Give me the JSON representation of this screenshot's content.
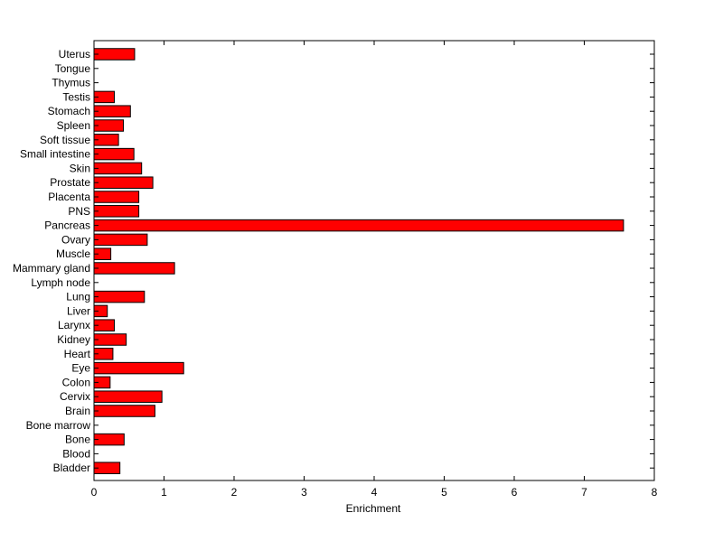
{
  "chart_data": {
    "type": "bar",
    "orientation": "horizontal",
    "xlabel": "Enrichment",
    "ylabel": "",
    "title": "",
    "xlim": [
      0,
      8
    ],
    "xticks": [
      0,
      1,
      2,
      3,
      4,
      5,
      6,
      7,
      8
    ],
    "grid": false,
    "legend": "none",
    "bar_color": "#ff0000",
    "categories": [
      "Bladder",
      "Blood",
      "Bone",
      "Bone marrow",
      "Brain",
      "Cervix",
      "Colon",
      "Eye",
      "Heart",
      "Kidney",
      "Larynx",
      "Liver",
      "Lung",
      "Lymph node",
      "Mammary gland",
      "Muscle",
      "Ovary",
      "Pancreas",
      "PNS",
      "Placenta",
      "Prostate",
      "Skin",
      "Small intestine",
      "Soft tissue",
      "Spleen",
      "Stomach",
      "Testis",
      "Thymus",
      "Tongue",
      "Uterus"
    ],
    "values": [
      0.37,
      0,
      0.43,
      0,
      0.87,
      0.97,
      0.23,
      1.28,
      0.27,
      0.46,
      0.29,
      0.19,
      0.72,
      0,
      1.15,
      0.24,
      0.76,
      7.56,
      0.64,
      0.64,
      0.84,
      0.68,
      0.57,
      0.35,
      0.42,
      0.52,
      0.29,
      0,
      0,
      0.58
    ]
  }
}
